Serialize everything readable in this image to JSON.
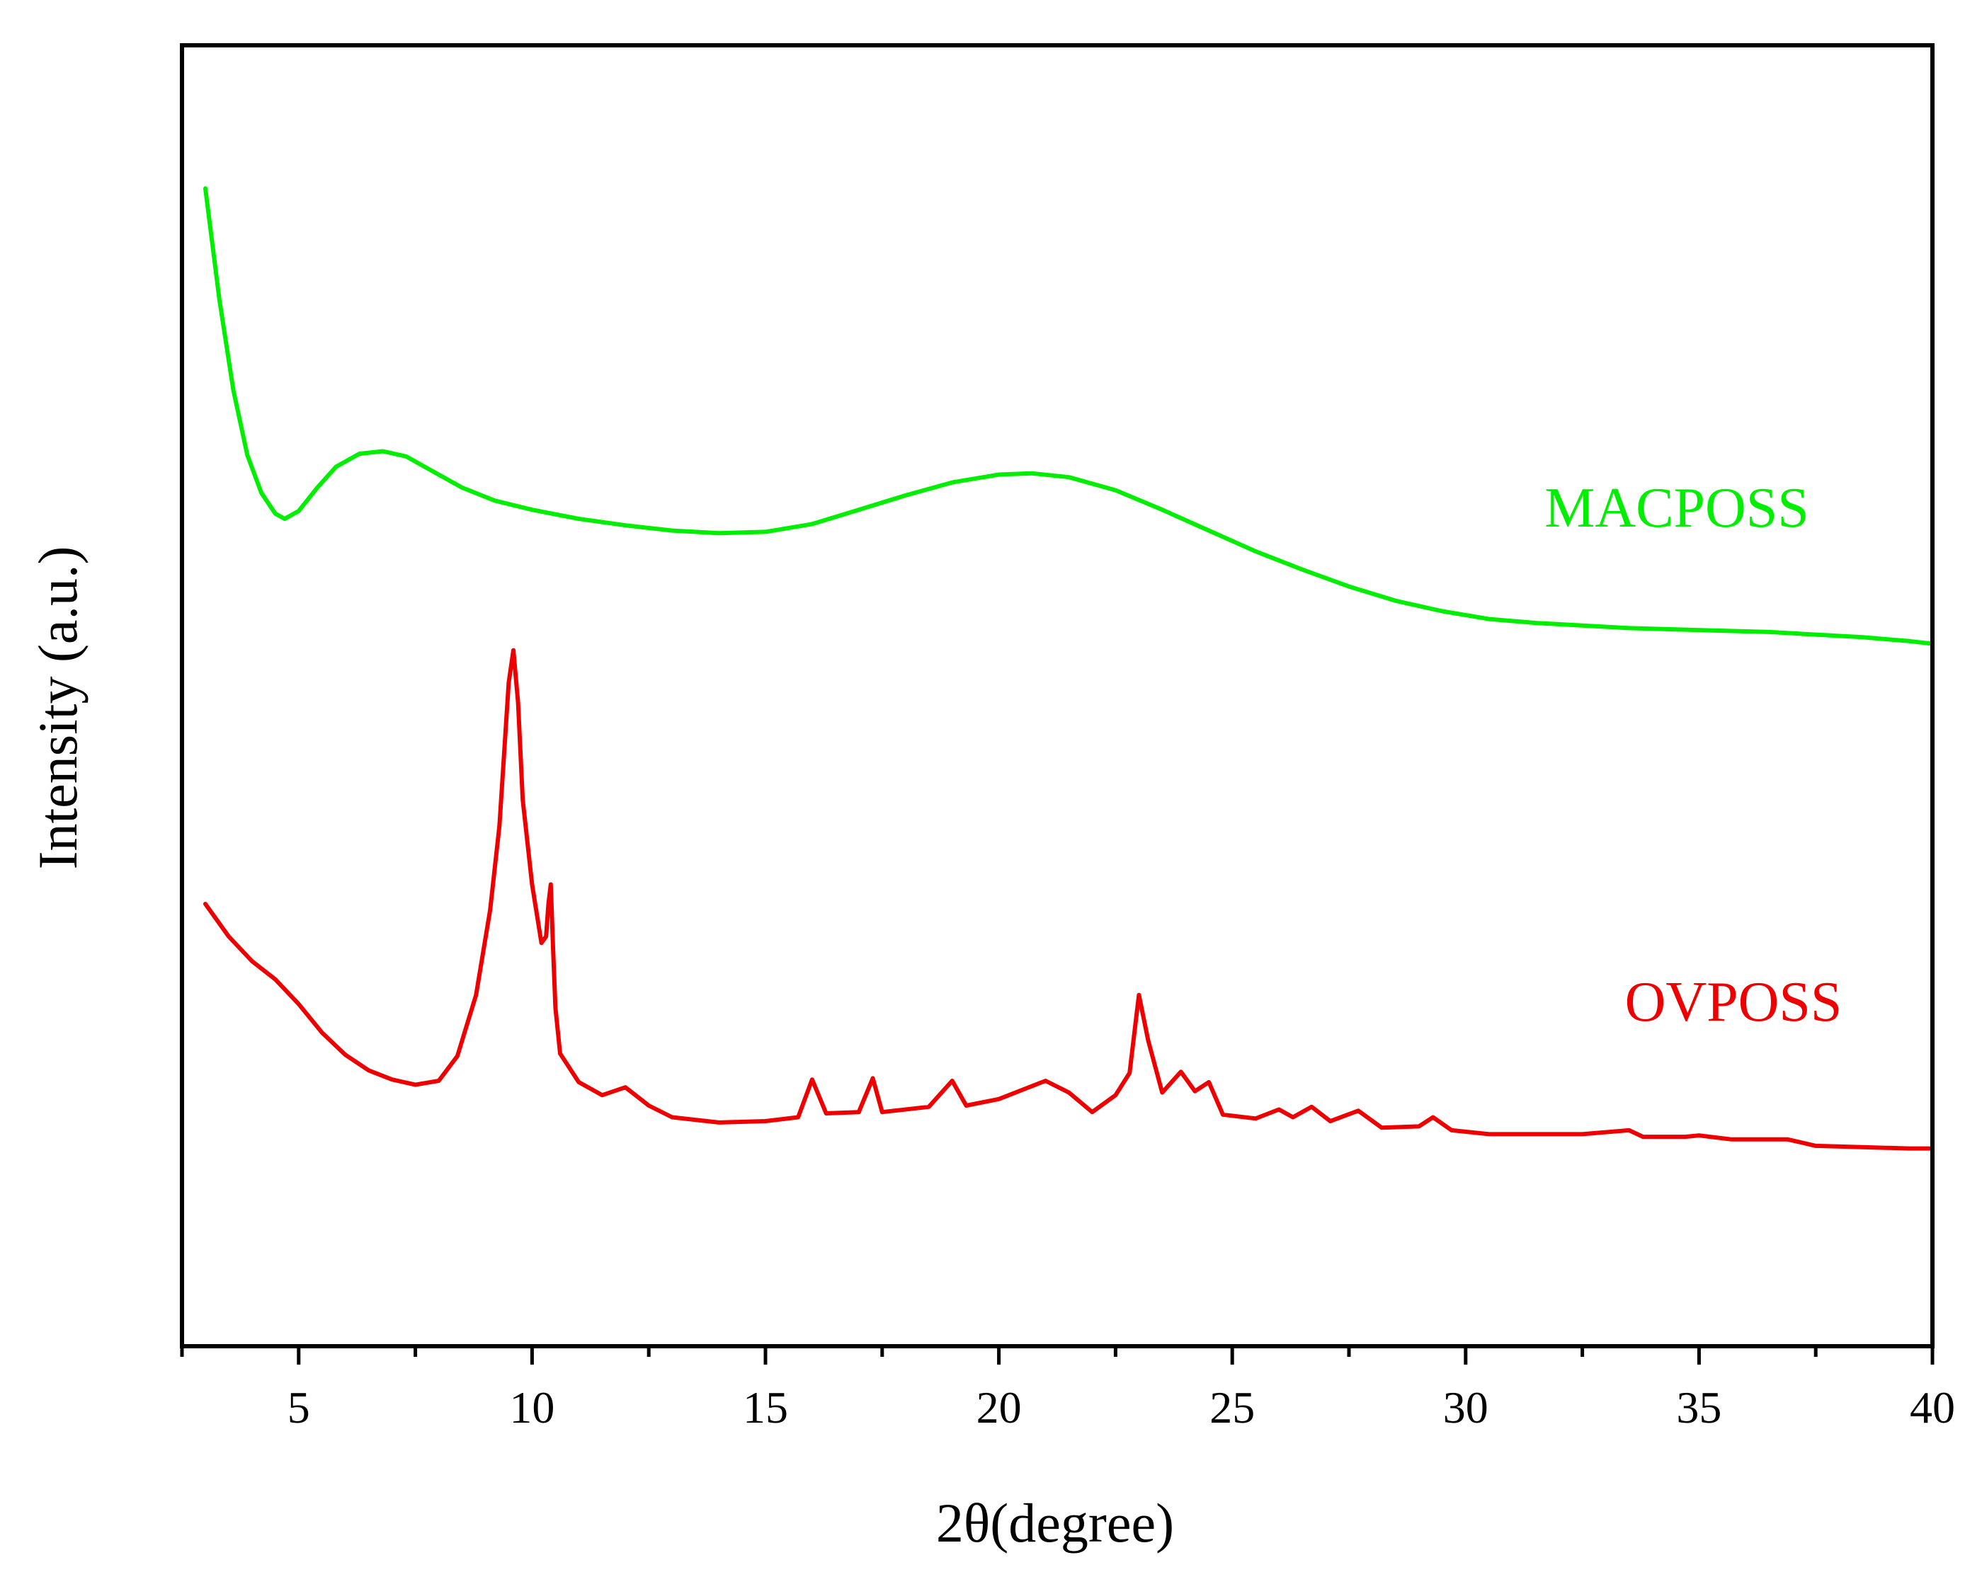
{
  "chart_data": {
    "type": "line",
    "title": "",
    "xlabel": "2θ(degree)",
    "ylabel": "Intensity (a.u.)",
    "xlim": [
      2.5,
      40
    ],
    "xticks": [
      5,
      10,
      15,
      20,
      25,
      30,
      35,
      40
    ],
    "xtick_labels": [
      "5",
      "10",
      "15",
      "20",
      "25",
      "30",
      "35",
      "40"
    ],
    "minor_xtick_step": 2.5,
    "ylim": [
      0,
      100
    ],
    "yticks": [],
    "grid": false,
    "series": [
      {
        "name": "MACPOSS",
        "color": "#00ee00",
        "label_position": "upper-right",
        "x": [
          3.0,
          3.3,
          3.6,
          3.9,
          4.2,
          4.5,
          4.7,
          5.0,
          5.4,
          5.8,
          6.3,
          6.8,
          7.3,
          7.8,
          8.5,
          9.2,
          10.0,
          11.0,
          12.0,
          13.0,
          14.0,
          15.0,
          16.0,
          17.0,
          18.0,
          19.0,
          20.0,
          20.7,
          21.5,
          22.5,
          23.5,
          24.5,
          25.5,
          26.5,
          27.5,
          28.5,
          29.5,
          30.5,
          31.5,
          32.5,
          33.5,
          34.5,
          35.5,
          36.5,
          37.5,
          38.5,
          39.5,
          40.0
        ],
        "y": [
          89.0,
          80.5,
          73.5,
          68.5,
          65.6,
          64.0,
          63.6,
          64.2,
          66.0,
          67.6,
          68.6,
          68.8,
          68.4,
          67.4,
          66.0,
          65.0,
          64.3,
          63.6,
          63.1,
          62.7,
          62.5,
          62.6,
          63.2,
          64.3,
          65.4,
          66.4,
          67.0,
          67.1,
          66.8,
          65.8,
          64.3,
          62.7,
          61.1,
          59.7,
          58.4,
          57.3,
          56.5,
          55.9,
          55.6,
          55.4,
          55.2,
          55.1,
          55.0,
          54.9,
          54.7,
          54.5,
          54.2,
          54.0
        ]
      },
      {
        "name": "OVPOSS",
        "color": "#ee0000",
        "label_position": "lower-right",
        "x": [
          3.0,
          3.5,
          4.0,
          4.5,
          5.0,
          5.5,
          6.0,
          6.5,
          7.0,
          7.5,
          8.0,
          8.4,
          8.8,
          9.1,
          9.3,
          9.5,
          9.6,
          9.7,
          9.8,
          10.0,
          10.2,
          10.3,
          10.35,
          10.4,
          10.45,
          10.5,
          10.6,
          11.0,
          11.5,
          12.0,
          12.5,
          13.0,
          14.0,
          15.0,
          15.7,
          16.0,
          16.3,
          17.0,
          17.3,
          17.5,
          18.5,
          19.0,
          19.3,
          20.0,
          21.0,
          21.5,
          22.0,
          22.5,
          22.8,
          23.0,
          23.2,
          23.5,
          23.9,
          24.2,
          24.5,
          24.8,
          25.5,
          26.0,
          26.3,
          26.7,
          27.1,
          27.7,
          28.2,
          29.0,
          29.3,
          29.7,
          30.5,
          31.5,
          32.5,
          33.5,
          33.8,
          34.7,
          35.0,
          35.7,
          36.3,
          36.9,
          37.5,
          38.5,
          39.5,
          40.0
        ],
        "y": [
          34.0,
          31.5,
          29.6,
          28.2,
          26.3,
          24.1,
          22.4,
          21.2,
          20.5,
          20.1,
          20.4,
          22.3,
          27.0,
          33.5,
          40.0,
          51.0,
          53.5,
          49.5,
          42.0,
          35.5,
          31.0,
          31.5,
          34.0,
          35.5,
          30.5,
          26.0,
          22.5,
          20.3,
          19.3,
          19.9,
          18.5,
          17.6,
          17.2,
          17.3,
          17.6,
          20.5,
          17.9,
          18.0,
          20.6,
          18.0,
          18.4,
          20.4,
          18.5,
          19.0,
          20.4,
          19.5,
          18.0,
          19.3,
          21.0,
          27.0,
          23.5,
          19.5,
          21.1,
          19.6,
          20.3,
          17.8,
          17.5,
          18.2,
          17.6,
          18.4,
          17.3,
          18.1,
          16.8,
          16.9,
          17.6,
          16.6,
          16.3,
          16.3,
          16.3,
          16.6,
          16.1,
          16.1,
          16.2,
          15.9,
          15.9,
          15.9,
          15.4,
          15.3,
          15.2,
          15.2
        ]
      }
    ]
  }
}
